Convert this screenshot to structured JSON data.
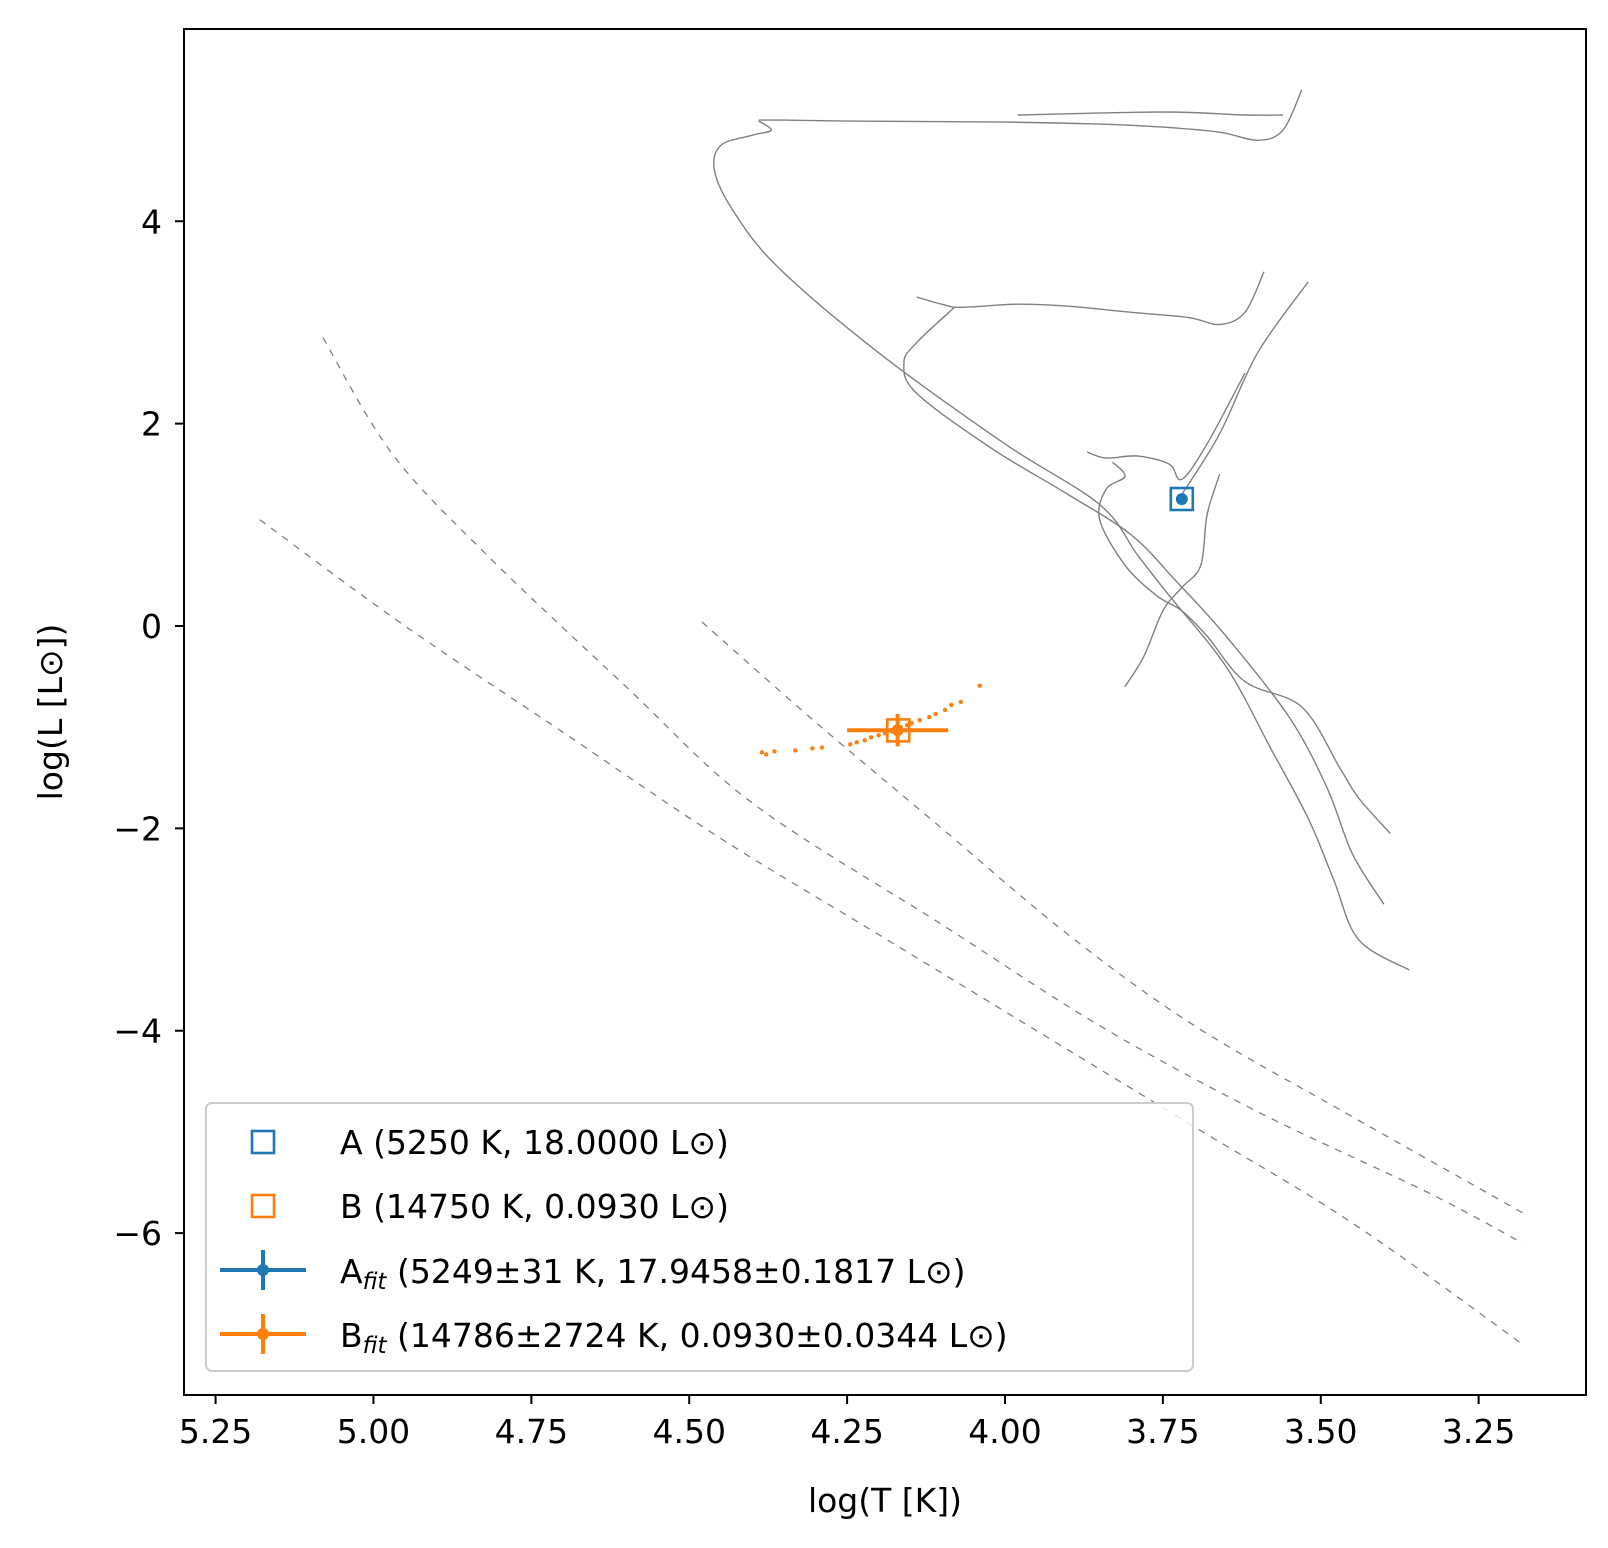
{
  "chart_data": {
    "type": "scatter",
    "title": "",
    "xlabel": "log(T [K])",
    "ylabel": "log(L [L⊙])",
    "xlim": [
      5.3,
      3.08
    ],
    "ylim": [
      -7.6,
      5.9
    ],
    "x_inverted": true,
    "grid": false,
    "legend_position": "lower-left",
    "x_ticks": [
      5.25,
      5.0,
      4.75,
      4.5,
      4.25,
      4.0,
      3.75,
      3.5,
      3.25
    ],
    "x_tick_labels": [
      "5.25",
      "5.00",
      "4.75",
      "4.50",
      "4.25",
      "4.00",
      "3.75",
      "3.50",
      "3.25"
    ],
    "y_ticks": [
      4,
      2,
      0,
      -2,
      -4,
      -6
    ],
    "y_tick_labels": [
      "4",
      "2",
      "0",
      "−2",
      "−4",
      "−6"
    ],
    "colors": {
      "A": "#1f77b4",
      "B": "#ff7f0e",
      "tracks": "#808080"
    },
    "series": [
      {
        "name": "A (5250 K, 18.0000 L⊙)",
        "kind": "square-marker",
        "color": "#1f77b4",
        "points": [
          [
            3.72,
            1.255
          ]
        ]
      },
      {
        "name": "B (14750 K, 0.0930 L⊙)",
        "kind": "square-marker",
        "color": "#ff7f0e",
        "points": [
          [
            4.169,
            -1.032
          ]
        ]
      },
      {
        "name_base": "A",
        "name_sub": "fit",
        "name_rest": " (5249±31 K, 17.9458±0.1817 L⊙)",
        "kind": "errorbar",
        "color": "#1f77b4",
        "x": 3.72,
        "y": 1.254,
        "xerr": 0.003,
        "yerr": 0.004
      },
      {
        "name_base": "B",
        "name_sub": "fit",
        "name_rest": " (14786±2724 K, 0.0930±0.0344 L⊙)",
        "kind": "errorbar",
        "color": "#ff7f0e",
        "x": 4.17,
        "y": -1.03,
        "xerr": 0.08,
        "yerr": 0.16
      },
      {
        "name": "B samples",
        "kind": "dots",
        "color": "#ff7f0e",
        "in_legend": false,
        "points": [
          [
            4.385,
            -1.25
          ],
          [
            4.378,
            -1.27
          ],
          [
            4.365,
            -1.24
          ],
          [
            4.332,
            -1.23
          ],
          [
            4.305,
            -1.21
          ],
          [
            4.29,
            -1.2
          ],
          [
            4.245,
            -1.17
          ],
          [
            4.235,
            -1.15
          ],
          [
            4.222,
            -1.13
          ],
          [
            4.212,
            -1.1
          ],
          [
            4.2,
            -1.08
          ],
          [
            4.19,
            -1.06
          ],
          [
            4.18,
            -1.04
          ],
          [
            4.172,
            -1.02
          ],
          [
            4.165,
            -1.0
          ],
          [
            4.155,
            -0.98
          ],
          [
            4.148,
            -0.96
          ],
          [
            4.135,
            -0.93
          ],
          [
            4.12,
            -0.9
          ],
          [
            4.11,
            -0.87
          ],
          [
            4.095,
            -0.83
          ],
          [
            4.085,
            -0.78
          ],
          [
            4.07,
            -0.75
          ],
          [
            4.04,
            -0.59
          ]
        ]
      }
    ],
    "tracks": [
      [
        [
          4.39,
          5.0
        ],
        [
          4.35,
          5.0
        ],
        [
          4.25,
          4.99
        ],
        [
          4.0,
          4.98
        ],
        [
          3.85,
          4.96
        ],
        [
          3.75,
          4.93
        ],
        [
          3.66,
          4.88
        ],
        [
          3.6,
          4.8
        ],
        [
          3.56,
          4.9
        ],
        [
          3.53,
          5.3
        ]
      ],
      [
        [
          3.98,
          5.05
        ],
        [
          3.75,
          5.08
        ],
        [
          3.62,
          5.05
        ],
        [
          3.56,
          5.05
        ]
      ],
      [
        [
          4.39,
          4.99
        ],
        [
          4.37,
          4.9
        ],
        [
          4.4,
          4.85
        ],
        [
          4.45,
          4.75
        ],
        [
          4.46,
          4.5
        ],
        [
          4.43,
          4.1
        ],
        [
          4.36,
          3.55
        ],
        [
          4.2,
          2.7
        ],
        [
          4.0,
          1.8
        ],
        [
          3.85,
          1.2
        ],
        [
          3.79,
          0.7
        ],
        [
          3.74,
          0.3
        ],
        [
          3.65,
          -0.4
        ],
        [
          3.58,
          -1.2
        ],
        [
          3.52,
          -1.9
        ],
        [
          3.48,
          -2.5
        ],
        [
          3.44,
          -3.1
        ],
        [
          3.36,
          -3.4
        ]
      ],
      [
        [
          4.14,
          3.25
        ],
        [
          4.1,
          3.18
        ],
        [
          4.07,
          3.15
        ],
        [
          3.98,
          3.18
        ],
        [
          3.9,
          3.16
        ],
        [
          3.8,
          3.1
        ],
        [
          3.71,
          3.05
        ],
        [
          3.66,
          2.98
        ],
        [
          3.62,
          3.1
        ],
        [
          3.59,
          3.5
        ]
      ],
      [
        [
          4.08,
          3.15
        ],
        [
          4.14,
          2.8
        ],
        [
          4.16,
          2.6
        ],
        [
          4.14,
          2.3
        ],
        [
          4.02,
          1.75
        ],
        [
          3.9,
          1.3
        ],
        [
          3.8,
          0.9
        ],
        [
          3.73,
          0.45
        ],
        [
          3.65,
          -0.1
        ],
        [
          3.55,
          -0.9
        ],
        [
          3.49,
          -1.6
        ],
        [
          3.45,
          -2.25
        ],
        [
          3.4,
          -2.75
        ]
      ],
      [
        [
          3.87,
          1.72
        ],
        [
          3.84,
          1.66
        ],
        [
          3.79,
          1.68
        ],
        [
          3.74,
          1.6
        ],
        [
          3.72,
          1.45
        ],
        [
          3.68,
          1.8
        ],
        [
          3.62,
          2.5
        ]
      ],
      [
        [
          3.83,
          1.62
        ],
        [
          3.81,
          1.48
        ],
        [
          3.84,
          1.35
        ],
        [
          3.85,
          1.05
        ],
        [
          3.81,
          0.6
        ],
        [
          3.76,
          0.3
        ],
        [
          3.72,
          0.15
        ],
        [
          3.68,
          -0.1
        ],
        [
          3.62,
          -0.55
        ],
        [
          3.53,
          -0.8
        ],
        [
          3.47,
          -1.4
        ],
        [
          3.44,
          -1.7
        ],
        [
          3.39,
          -2.05
        ]
      ],
      [
        [
          3.66,
          1.5
        ],
        [
          3.68,
          1.1
        ],
        [
          3.69,
          0.6
        ],
        [
          3.72,
          0.38
        ],
        [
          3.75,
          0.15
        ],
        [
          3.78,
          -0.3
        ],
        [
          3.81,
          -0.6
        ]
      ],
      [
        [
          3.72,
          1.3
        ],
        [
          3.66,
          1.9
        ],
        [
          3.6,
          2.7
        ],
        [
          3.52,
          3.4
        ]
      ]
    ],
    "cooling_lines": [
      [
        [
          5.08,
          2.85
        ],
        [
          4.97,
          1.7
        ],
        [
          4.82,
          0.7
        ],
        [
          4.6,
          -0.6
        ],
        [
          4.4,
          -1.75
        ],
        [
          4.1,
          -2.95
        ],
        [
          3.85,
          -3.95
        ],
        [
          3.6,
          -4.8
        ],
        [
          3.33,
          -5.6
        ],
        [
          3.18,
          -6.1
        ]
      ],
      [
        [
          5.18,
          1.05
        ],
        [
          4.95,
          0.0
        ],
        [
          4.7,
          -1.05
        ],
        [
          4.45,
          -2.1
        ],
        [
          4.2,
          -3.05
        ],
        [
          3.95,
          -4.0
        ],
        [
          3.7,
          -4.95
        ],
        [
          3.45,
          -5.9
        ],
        [
          3.18,
          -7.1
        ]
      ],
      [
        [
          4.48,
          0.04
        ],
        [
          4.3,
          -0.95
        ],
        [
          4.1,
          -2.0
        ],
        [
          3.9,
          -3.05
        ],
        [
          3.7,
          -3.95
        ],
        [
          3.45,
          -4.85
        ],
        [
          3.18,
          -5.8
        ]
      ]
    ]
  }
}
